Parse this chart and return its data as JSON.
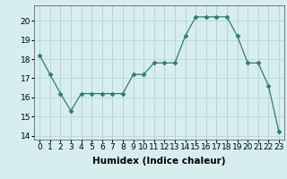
{
  "x": [
    0,
    1,
    2,
    3,
    4,
    5,
    6,
    7,
    8,
    9,
    10,
    11,
    12,
    13,
    14,
    15,
    16,
    17,
    18,
    19,
    20,
    21,
    22,
    23
  ],
  "y": [
    18.2,
    17.2,
    16.2,
    15.3,
    16.2,
    16.2,
    16.2,
    16.2,
    16.2,
    17.2,
    17.2,
    17.8,
    17.8,
    17.8,
    19.2,
    20.2,
    20.2,
    20.2,
    20.2,
    19.2,
    17.8,
    17.8,
    16.6,
    14.2
  ],
  "line_color": "#2e7d6e",
  "marker": "D",
  "marker_size": 2.5,
  "bg_color": "#d6eeee",
  "grid_color": "#b8d8d8",
  "grid_major_color": "#c8a0a0",
  "xlabel": "Humidex (Indice chaleur)",
  "xlabel_fontsize": 7.5,
  "ylabel_ticks": [
    14,
    15,
    16,
    17,
    18,
    19,
    20
  ],
  "xlim": [
    -0.5,
    23.5
  ],
  "ylim": [
    13.8,
    20.8
  ],
  "tick_fontsize": 6.5
}
